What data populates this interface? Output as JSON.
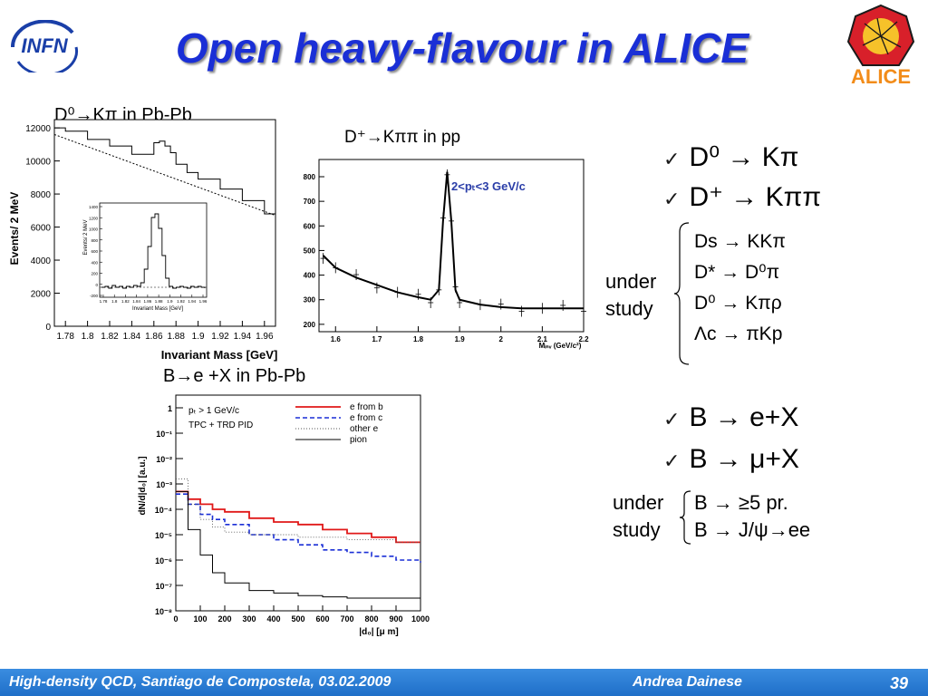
{
  "slide": {
    "title": "Open heavy-flavour in ALICE",
    "page_number": "39",
    "footer_left": "High-density QCD, Santiago de Compostela, 03.02.2009",
    "footer_center": "Andrea Dainese",
    "logo_left_text": "INFN",
    "logo_right_text": "ALICE"
  },
  "plot1": {
    "label": "D⁰→Kπ in Pb-Pb",
    "ylabel": "Events/ 2 MeV",
    "xlabel": "Invariant Mass [GeV]",
    "xticks": [
      "1.78",
      "1.8",
      "1.82",
      "1.84",
      "1.86",
      "1.88",
      "1.9",
      "1.92",
      "1.94",
      "1.96"
    ],
    "yticks": [
      "0",
      "2000",
      "4000",
      "6000",
      "8000",
      "10000",
      "12000"
    ],
    "inset_ylabel": "Events/ 2 MeV",
    "inset_xlabel": "Invariant Mass [GeV]",
    "inset_xticks": [
      "1.78",
      "1.8",
      "1.82",
      "1.84",
      "1.86",
      "1.88",
      "1.9",
      "1.92",
      "1.94",
      "1.96"
    ],
    "inset_yticks": [
      "-200",
      "0",
      "200",
      "400",
      "600",
      "800",
      "1000",
      "1200",
      "1400"
    ]
  },
  "plot2": {
    "label": "D⁺→Kππ in pp",
    "legend": "2<pₜ<3 GeV/c",
    "xlabel": "Mᵢₙᵥ (GeV/c²)",
    "xticks": [
      "1.6",
      "1.7",
      "1.8",
      "1.9",
      "2",
      "2.1",
      "2.2"
    ],
    "yticks": [
      "200",
      "300",
      "400",
      "500",
      "600",
      "700",
      "800"
    ]
  },
  "plot3": {
    "label": "B→e +X  in Pb-Pb",
    "ylabel": "dN/d|d₀| [a.u.]",
    "xlabel": "|d₀| [μ m]",
    "note1": "pₜ > 1 GeV/c",
    "note2": "TPC + TRD  PID",
    "legend": [
      "e from b",
      "e from c",
      "other e",
      "pion"
    ],
    "xticks": [
      "0",
      "100",
      "200",
      "300",
      "400",
      "500",
      "600",
      "700",
      "800",
      "900",
      "1000"
    ],
    "yticks": [
      "1",
      "10⁻¹",
      "10⁻²",
      "10⁻³",
      "10⁻⁴",
      "10⁻⁵",
      "10⁻⁶",
      "10⁻⁷",
      "10⁻⁸"
    ]
  },
  "bullets": {
    "charm1": "D⁰  → Kπ",
    "charm2": "D⁺  →  Kππ",
    "under_study_a_line1": "under",
    "under_study_a_line2": "study",
    "charm_study": [
      "Ds  →  KKπ",
      "D*  →  D⁰π",
      "D⁰  →  Kπρ",
      "Λc  →  πKp"
    ],
    "beauty1": "B → e+X",
    "beauty2": "B → μ+X",
    "under_study_b_line1": "under",
    "under_study_b_line2": "study",
    "beauty_study": [
      "B → ≥5 pr.",
      "B → J/ψ→ee"
    ]
  },
  "chart_data": [
    {
      "type": "line",
      "title": "D⁰→Kπ in Pb-Pb",
      "xlabel": "Invariant Mass [GeV]",
      "ylabel": "Events/ 2 MeV",
      "xlim": [
        1.77,
        1.97
      ],
      "ylim": [
        0,
        12500
      ],
      "series": [
        {
          "x": [
            1.77,
            1.78,
            1.8,
            1.82,
            1.84,
            1.85,
            1.86,
            1.865,
            1.87,
            1.875,
            1.88,
            1.89,
            1.9,
            1.92,
            1.94,
            1.96,
            1.97
          ],
          "y": [
            12000,
            11800,
            11300,
            10900,
            10400,
            10400,
            11100,
            11200,
            10900,
            10500,
            9800,
            9300,
            8900,
            8300,
            7600,
            6800,
            6500
          ]
        }
      ]
    },
    {
      "type": "scatter",
      "title": "D⁺→Kππ in pp",
      "xlabel": "Mᵢₙᵥ (GeV/c²)",
      "xlim": [
        1.56,
        2.2
      ],
      "ylim": [
        170,
        870
      ],
      "series": [
        {
          "x": [
            1.57,
            1.6,
            1.65,
            1.7,
            1.75,
            1.8,
            1.83,
            1.85,
            1.86,
            1.87,
            1.88,
            1.89,
            1.9,
            1.95,
            2.0,
            2.05,
            2.1,
            2.15,
            2.2
          ],
          "y": [
            480,
            430,
            390,
            360,
            330,
            310,
            300,
            340,
            620,
            820,
            620,
            340,
            300,
            280,
            270,
            265,
            265,
            265,
            265
          ]
        }
      ]
    },
    {
      "type": "line",
      "title": "B→e +X  in Pb-Pb",
      "xlabel": "|d₀| [μ m]",
      "ylabel": "dN/d|d₀| [a.u.]",
      "xlim": [
        0,
        1000
      ],
      "ylim_log10": [
        -8,
        0.5
      ],
      "series": [
        {
          "name": "e from b",
          "x": [
            0,
            50,
            100,
            150,
            200,
            300,
            400,
            500,
            600,
            700,
            800,
            900,
            1000
          ],
          "y_log10": [
            -3.3,
            -3.6,
            -3.8,
            -4.0,
            -4.1,
            -4.35,
            -4.5,
            -4.6,
            -4.8,
            -4.95,
            -5.1,
            -5.3,
            -5.3
          ]
        },
        {
          "name": "e from c",
          "x": [
            0,
            50,
            100,
            150,
            200,
            300,
            400,
            500,
            600,
            700,
            800,
            900,
            1000
          ],
          "y_log10": [
            -3.4,
            -3.8,
            -4.2,
            -4.4,
            -4.6,
            -5.0,
            -5.2,
            -5.4,
            -5.6,
            -5.7,
            -5.85,
            -6.0,
            -6.1
          ]
        },
        {
          "name": "other e",
          "x": [
            0,
            50,
            100,
            150,
            200,
            300,
            400,
            500,
            600,
            700,
            800,
            900,
            1000
          ],
          "y_log10": [
            -2.8,
            -3.8,
            -4.4,
            -4.7,
            -4.9,
            -5.0,
            -5.0,
            -5.1,
            -5.1,
            -5.2,
            -5.2,
            -5.3,
            -5.3
          ]
        },
        {
          "name": "pion",
          "x": [
            0,
            50,
            100,
            150,
            200,
            300,
            400,
            500,
            600,
            700,
            800,
            900,
            1000
          ],
          "y_log10": [
            -3.3,
            -4.8,
            -5.8,
            -6.5,
            -6.9,
            -7.2,
            -7.3,
            -7.4,
            -7.45,
            -7.5,
            -7.5,
            -7.5,
            -7.55
          ]
        }
      ]
    }
  ]
}
